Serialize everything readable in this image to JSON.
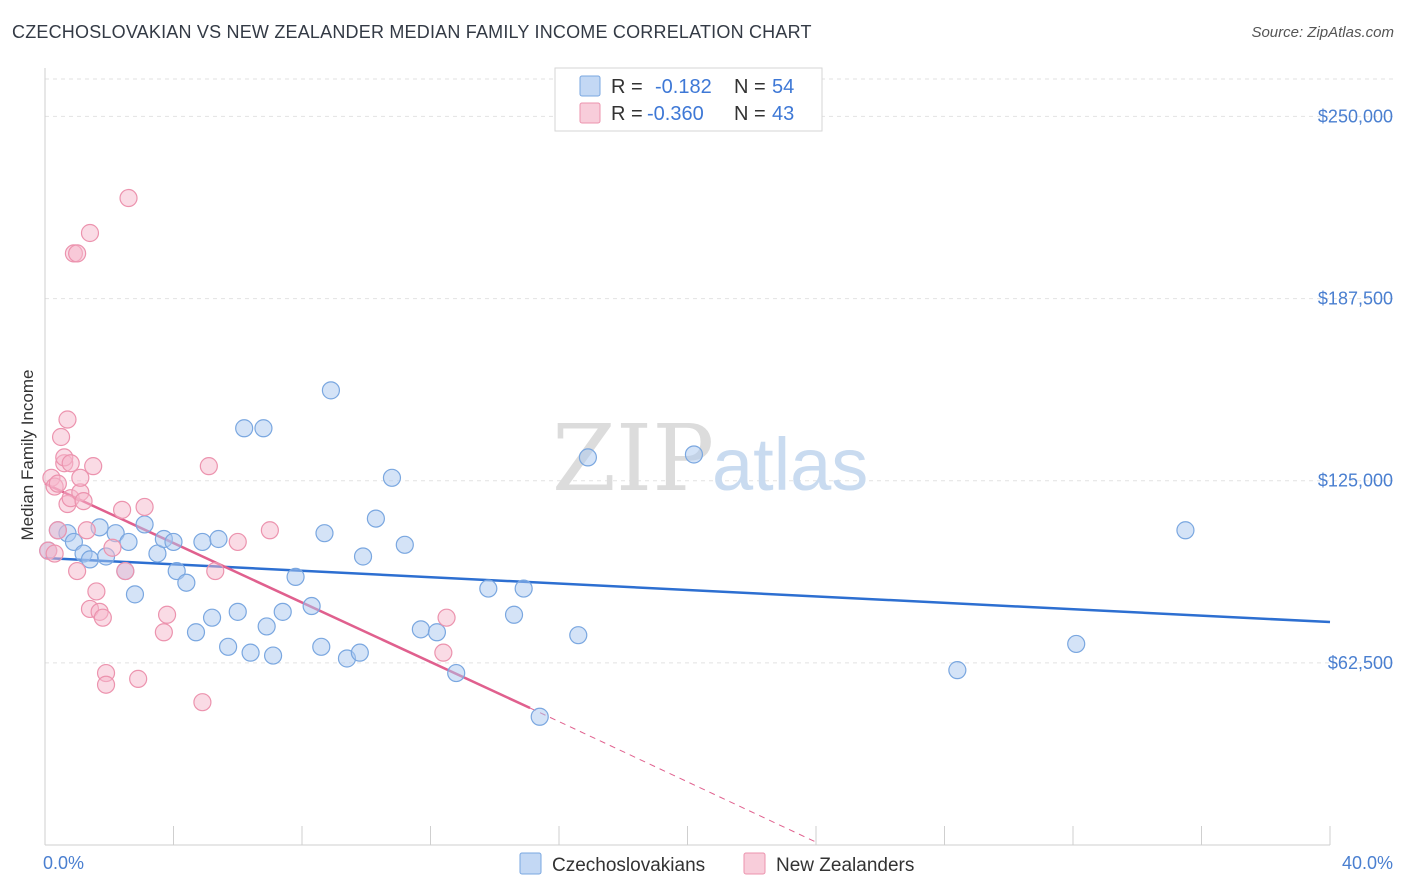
{
  "header": {
    "title": "CZECHOSLOVAKIAN VS NEW ZEALANDER MEDIAN FAMILY INCOME CORRELATION CHART",
    "source": "Source: ZipAtlas.com"
  },
  "watermark": {
    "zip": "ZIP",
    "atlas": "atlas"
  },
  "legend": {
    "rows": [
      {
        "r_label": "R =",
        "r_value": "-0.182",
        "n_label": "N =",
        "n_value": "54",
        "color": "#a9c8ef"
      },
      {
        "r_label": "R =",
        "r_value": "-0.360",
        "n_label": "N =",
        "n_value": "43",
        "color": "#f5b8cb"
      }
    ]
  },
  "bottom_legend": [
    {
      "label": "Czechoslovakians",
      "color": "#a9c8ef"
    },
    {
      "label": "New Zealanders",
      "color": "#f5b8cb"
    }
  ],
  "colors": {
    "blue_fill": "#a9c8ef",
    "blue_stroke": "#7aa7e0",
    "blue_line": "#2d6fd1",
    "pink_fill": "#f5b8cb",
    "pink_stroke": "#ec93ae",
    "pink_line": "#e0608e",
    "grid": "#e2e2e2",
    "axis_text": "#4a7fd0"
  },
  "chart_data": {
    "type": "scatter",
    "title": "CZECHOSLOVAKIAN VS NEW ZEALANDER MEDIAN FAMILY INCOME CORRELATION CHART",
    "xlabel": "",
    "ylabel": "Median Family Income",
    "xlim": [
      0,
      40
    ],
    "ylim": [
      0,
      262500
    ],
    "x_tick_labels": [
      "0.0%",
      "40.0%"
    ],
    "y_ticks": [
      62500,
      125000,
      187500,
      250000
    ],
    "y_tick_labels": [
      "$62,500",
      "$125,000",
      "$187,500",
      "$250,000"
    ],
    "grid": true,
    "series": [
      {
        "name": "Czechoslovakians",
        "r": -0.182,
        "n": 54,
        "trend": {
          "x0": 0,
          "y0": 98500,
          "x1": 40,
          "y1": 76500
        },
        "points": [
          [
            0.1,
            101000
          ],
          [
            0.4,
            108000
          ],
          [
            0.7,
            107000
          ],
          [
            0.9,
            104000
          ],
          [
            1.2,
            100000
          ],
          [
            1.4,
            98000
          ],
          [
            1.7,
            109000
          ],
          [
            1.9,
            99000
          ],
          [
            2.2,
            107000
          ],
          [
            2.5,
            94000
          ],
          [
            2.6,
            104000
          ],
          [
            2.8,
            86000
          ],
          [
            3.1,
            110000
          ],
          [
            3.5,
            100000
          ],
          [
            3.7,
            105000
          ],
          [
            4.0,
            104000
          ],
          [
            4.1,
            94000
          ],
          [
            4.4,
            90000
          ],
          [
            4.7,
            73000
          ],
          [
            4.9,
            104000
          ],
          [
            5.2,
            78000
          ],
          [
            5.4,
            105000
          ],
          [
            5.7,
            68000
          ],
          [
            6.0,
            80000
          ],
          [
            6.2,
            143000
          ],
          [
            6.4,
            66000
          ],
          [
            6.8,
            143000
          ],
          [
            6.9,
            75000
          ],
          [
            7.1,
            65000
          ],
          [
            7.4,
            80000
          ],
          [
            7.8,
            92000
          ],
          [
            8.3,
            82000
          ],
          [
            8.6,
            68000
          ],
          [
            8.7,
            107000
          ],
          [
            8.9,
            156000
          ],
          [
            9.4,
            64000
          ],
          [
            9.8,
            66000
          ],
          [
            9.9,
            99000
          ],
          [
            10.3,
            112000
          ],
          [
            10.8,
            126000
          ],
          [
            11.2,
            103000
          ],
          [
            11.7,
            74000
          ],
          [
            12.2,
            73000
          ],
          [
            12.8,
            59000
          ],
          [
            13.8,
            88000
          ],
          [
            14.6,
            79000
          ],
          [
            14.9,
            88000
          ],
          [
            15.4,
            44000
          ],
          [
            16.6,
            72000
          ],
          [
            16.9,
            133000
          ],
          [
            20.2,
            134000
          ],
          [
            28.4,
            60000
          ],
          [
            32.1,
            69000
          ],
          [
            35.5,
            108000
          ]
        ]
      },
      {
        "name": "New Zealanders",
        "r": -0.36,
        "n": 43,
        "trend": {
          "x0": 0,
          "y0": 124000,
          "x1": 15.1,
          "y1": 47000,
          "dash_to_x": 24.0,
          "dash_to_y": 1000
        },
        "points": [
          [
            0.1,
            101000
          ],
          [
            0.2,
            126000
          ],
          [
            0.3,
            123000
          ],
          [
            0.4,
            108000
          ],
          [
            0.4,
            124000
          ],
          [
            0.5,
            140000
          ],
          [
            0.6,
            131000
          ],
          [
            0.6,
            133000
          ],
          [
            0.7,
            146000
          ],
          [
            0.7,
            117000
          ],
          [
            0.8,
            119000
          ],
          [
            0.8,
            131000
          ],
          [
            0.9,
            203000
          ],
          [
            1.0,
            94000
          ],
          [
            1.0,
            203000
          ],
          [
            1.1,
            121000
          ],
          [
            1.1,
            126000
          ],
          [
            1.2,
            118000
          ],
          [
            1.3,
            108000
          ],
          [
            1.4,
            210000
          ],
          [
            1.4,
            81000
          ],
          [
            1.5,
            130000
          ],
          [
            1.6,
            87000
          ],
          [
            1.7,
            80000
          ],
          [
            1.8,
            78000
          ],
          [
            1.9,
            59000
          ],
          [
            1.9,
            55000
          ],
          [
            2.1,
            102000
          ],
          [
            2.4,
            115000
          ],
          [
            2.5,
            94000
          ],
          [
            2.6,
            222000
          ],
          [
            2.9,
            57000
          ],
          [
            3.1,
            116000
          ],
          [
            3.7,
            73000
          ],
          [
            3.8,
            79000
          ],
          [
            4.9,
            49000
          ],
          [
            5.1,
            130000
          ],
          [
            5.3,
            94000
          ],
          [
            6.0,
            104000
          ],
          [
            7.0,
            108000
          ],
          [
            12.5,
            78000
          ],
          [
            12.4,
            66000
          ],
          [
            0.3,
            100000
          ]
        ]
      }
    ]
  }
}
